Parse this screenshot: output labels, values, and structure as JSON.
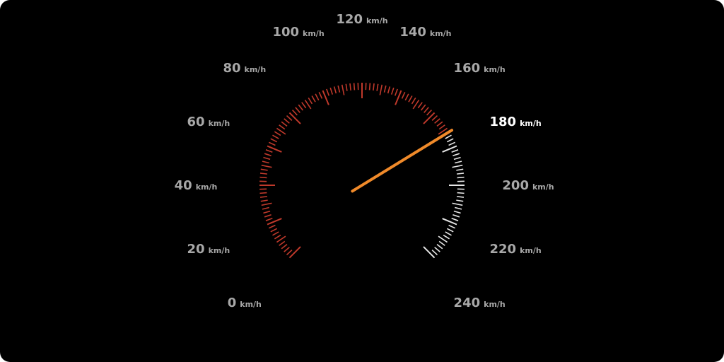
{
  "speedometer": {
    "unit": "km/h",
    "min": 0,
    "max": 240,
    "current_speed": 172,
    "colors": {
      "background": "#000000",
      "active_ticks": "#c0392b",
      "inactive_ticks": "#e6e6e6",
      "needle": "#f08a2a",
      "label_dim": "#a8a8a8",
      "label_bright": "#ffffff"
    },
    "labels": [
      {
        "value": "0",
        "unit": "km/h"
      },
      {
        "value": "20",
        "unit": "km/h"
      },
      {
        "value": "40",
        "unit": "km/h"
      },
      {
        "value": "60",
        "unit": "km/h"
      },
      {
        "value": "80",
        "unit": "km/h"
      },
      {
        "value": "100",
        "unit": "km/h"
      },
      {
        "value": "120",
        "unit": "km/h"
      },
      {
        "value": "140",
        "unit": "km/h"
      },
      {
        "value": "160",
        "unit": "km/h"
      },
      {
        "value": "180",
        "unit": "km/h"
      },
      {
        "value": "200",
        "unit": "km/h"
      },
      {
        "value": "220",
        "unit": "km/h"
      },
      {
        "value": "240",
        "unit": "km/h"
      }
    ]
  }
}
